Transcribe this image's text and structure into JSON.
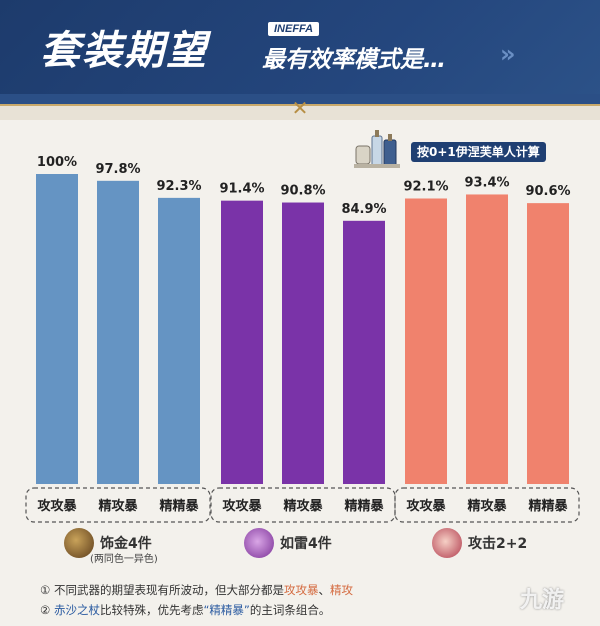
{
  "header": {
    "title": "套装期望",
    "brand_tag": "INEFFA",
    "subtitle": "最有效率模式是…",
    "chevrons": "»"
  },
  "note_badge": "按0+1伊涅芙单人计算",
  "colors": {
    "header_bg": "#1f3f72",
    "blue": "#6594c3",
    "purple": "#7a33a8",
    "salmon": "#f0826d"
  },
  "chart_data": {
    "type": "bar",
    "groups": [
      {
        "name": "饰金4件",
        "note": "(两同色一异色)",
        "color": "#6594c3",
        "categories": [
          "攻攻暴",
          "精攻暴",
          "精精暴"
        ],
        "values": [
          100,
          97.8,
          92.3
        ],
        "labels": [
          "100%",
          "97.8%",
          "92.3%"
        ]
      },
      {
        "name": "如雷4件",
        "note": "",
        "color": "#7a33a8",
        "categories": [
          "攻攻暴",
          "精攻暴",
          "精精暴"
        ],
        "values": [
          91.4,
          90.8,
          84.9
        ],
        "labels": [
          "91.4%",
          "90.8%",
          "84.9%"
        ]
      },
      {
        "name": "攻击2+2",
        "note": "",
        "color": "#f0826d",
        "categories": [
          "攻攻暴",
          "精攻暴",
          "精精暴"
        ],
        "values": [
          92.1,
          93.4,
          90.6
        ],
        "labels": [
          "92.1%",
          "93.4%",
          "90.6%"
        ]
      }
    ],
    "ylim": [
      0,
      100
    ],
    "title": "",
    "xlabel": "",
    "ylabel": ""
  },
  "footnotes": {
    "n1_prefix": "① 不同武器的期望表现有所波动，但大部分都是",
    "n1_hl1": "攻攻暴",
    "n1_sep": "、",
    "n1_hl2": "精攻",
    "n2_prefix": "② ",
    "n2_hl": "赤沙之杖",
    "n2_mid": "比较特殊，优先考虑",
    "n2_quote": "“精精暴”",
    "n2_suffix": "的主词条组合。"
  },
  "watermark": "九游"
}
